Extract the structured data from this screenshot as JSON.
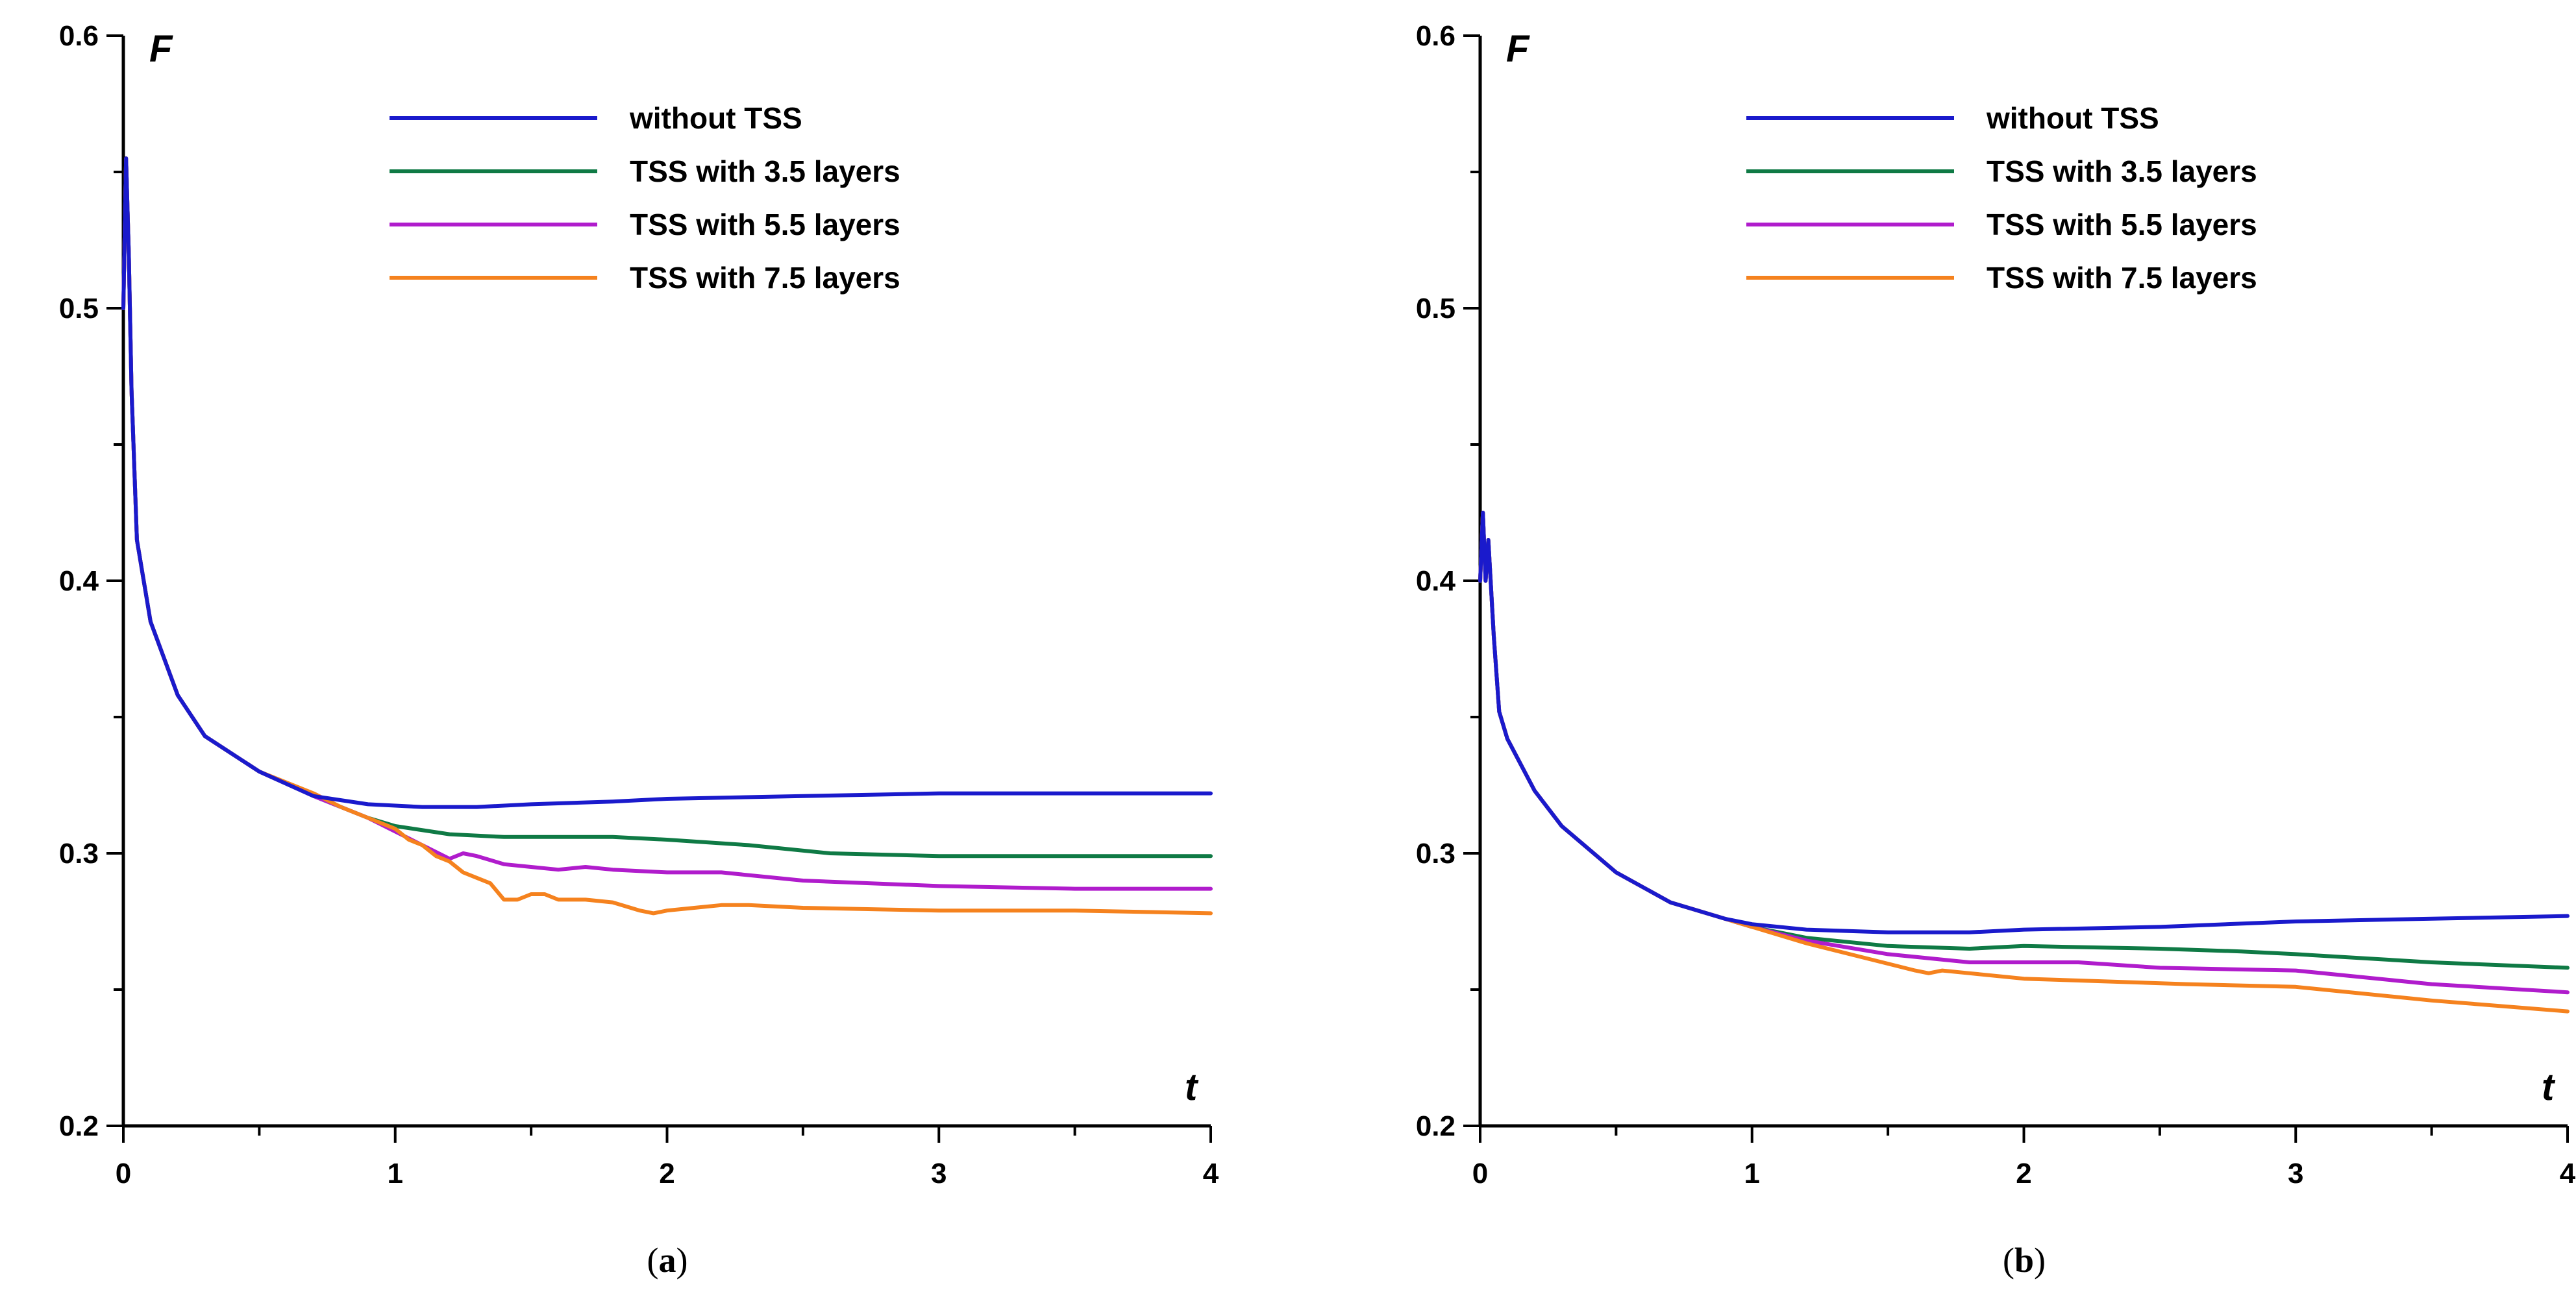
{
  "chart_data": [
    {
      "type": "line",
      "panel_label": "a",
      "xlabel": "t",
      "ylabel": "F",
      "xlim": [
        0,
        4
      ],
      "ylim": [
        0.2,
        0.6
      ],
      "x_ticks": [
        "0",
        "1",
        "2",
        "3",
        "4"
      ],
      "y_ticks": [
        "0.2",
        "0.3",
        "0.4",
        "0.5",
        "0.6"
      ],
      "x_tick_values": [
        0,
        1,
        2,
        3,
        4
      ],
      "y_tick_values": [
        0.2,
        0.3,
        0.4,
        0.5,
        0.6
      ],
      "x_minor_step": 0.5,
      "y_minor_step": 0.05,
      "legend_position": "top",
      "series": [
        {
          "name": "without TSS",
          "color": "#1a1acc",
          "x": [
            0,
            0.01,
            0.02,
            0.03,
            0.05,
            0.1,
            0.2,
            0.3,
            0.5,
            0.7,
            0.9,
            1.1,
            1.3,
            1.5,
            1.8,
            2.0,
            2.5,
            3.0,
            3.5,
            4.0
          ],
          "y": [
            0.5,
            0.555,
            0.52,
            0.47,
            0.415,
            0.385,
            0.358,
            0.343,
            0.33,
            0.321,
            0.318,
            0.317,
            0.317,
            0.318,
            0.319,
            0.32,
            0.321,
            0.322,
            0.322,
            0.322
          ]
        },
        {
          "name": "TSS with 3.5 layers",
          "color": "#0f7a45",
          "x": [
            0,
            0.01,
            0.02,
            0.03,
            0.05,
            0.1,
            0.2,
            0.3,
            0.5,
            0.7,
            0.9,
            1.0,
            1.2,
            1.4,
            1.6,
            1.8,
            2.0,
            2.3,
            2.6,
            3.0,
            3.5,
            4.0
          ],
          "y": [
            0.5,
            0.555,
            0.52,
            0.47,
            0.415,
            0.385,
            0.358,
            0.343,
            0.33,
            0.321,
            0.313,
            0.31,
            0.307,
            0.306,
            0.306,
            0.306,
            0.305,
            0.303,
            0.3,
            0.299,
            0.299,
            0.299
          ]
        },
        {
          "name": "TSS with 5.5 layers",
          "color": "#b01ccc",
          "x": [
            0,
            0.01,
            0.02,
            0.03,
            0.05,
            0.1,
            0.2,
            0.3,
            0.5,
            0.7,
            0.9,
            1.0,
            1.1,
            1.2,
            1.25,
            1.3,
            1.4,
            1.5,
            1.6,
            1.7,
            1.8,
            2.0,
            2.2,
            2.5,
            3.0,
            3.5,
            4.0
          ],
          "y": [
            0.5,
            0.555,
            0.52,
            0.47,
            0.415,
            0.385,
            0.358,
            0.343,
            0.33,
            0.321,
            0.313,
            0.308,
            0.303,
            0.298,
            0.3,
            0.299,
            0.296,
            0.295,
            0.294,
            0.295,
            0.294,
            0.293,
            0.293,
            0.29,
            0.288,
            0.287,
            0.287
          ]
        },
        {
          "name": "TSS with 7.5 layers",
          "color": "#f5821e",
          "x": [
            0,
            0.01,
            0.02,
            0.03,
            0.05,
            0.1,
            0.2,
            0.3,
            0.5,
            0.7,
            0.8,
            0.9,
            1.0,
            1.05,
            1.1,
            1.15,
            1.2,
            1.25,
            1.3,
            1.35,
            1.4,
            1.45,
            1.5,
            1.55,
            1.6,
            1.7,
            1.8,
            1.9,
            1.95,
            2.0,
            2.1,
            2.2,
            2.3,
            2.5,
            3.0,
            3.5,
            4.0
          ],
          "y": [
            0.5,
            0.555,
            0.52,
            0.47,
            0.415,
            0.385,
            0.358,
            0.343,
            0.33,
            0.322,
            0.317,
            0.313,
            0.309,
            0.305,
            0.303,
            0.299,
            0.297,
            0.293,
            0.291,
            0.289,
            0.283,
            0.283,
            0.285,
            0.285,
            0.283,
            0.283,
            0.282,
            0.279,
            0.278,
            0.279,
            0.28,
            0.281,
            0.281,
            0.28,
            0.279,
            0.279,
            0.278
          ]
        }
      ]
    },
    {
      "type": "line",
      "panel_label": "b",
      "xlabel": "t",
      "ylabel": "F",
      "xlim": [
        0,
        4
      ],
      "ylim": [
        0.2,
        0.6
      ],
      "x_ticks": [
        "0",
        "1",
        "2",
        "3",
        "4"
      ],
      "y_ticks": [
        "0.2",
        "0.3",
        "0.4",
        "0.5",
        "0.6"
      ],
      "x_tick_values": [
        0,
        1,
        2,
        3,
        4
      ],
      "y_tick_values": [
        0.2,
        0.3,
        0.4,
        0.5,
        0.6
      ],
      "x_minor_step": 0.5,
      "y_minor_step": 0.05,
      "legend_position": "top",
      "series": [
        {
          "name": "without TSS",
          "color": "#1a1acc",
          "x": [
            0,
            0.01,
            0.02,
            0.03,
            0.05,
            0.07,
            0.1,
            0.2,
            0.3,
            0.5,
            0.7,
            0.9,
            1.0,
            1.2,
            1.5,
            1.8,
            2.0,
            2.5,
            3.0,
            3.5,
            4.0
          ],
          "y": [
            0.4,
            0.425,
            0.4,
            0.415,
            0.38,
            0.352,
            0.342,
            0.323,
            0.31,
            0.293,
            0.282,
            0.276,
            0.274,
            0.272,
            0.271,
            0.271,
            0.272,
            0.273,
            0.275,
            0.276,
            0.277
          ]
        },
        {
          "name": "TSS with 3.5 layers",
          "color": "#0f7a45",
          "x": [
            0,
            0.01,
            0.02,
            0.03,
            0.05,
            0.07,
            0.1,
            0.2,
            0.3,
            0.5,
            0.7,
            0.9,
            1.0,
            1.2,
            1.5,
            1.8,
            2.0,
            2.5,
            2.8,
            3.0,
            3.5,
            4.0
          ],
          "y": [
            0.4,
            0.425,
            0.4,
            0.415,
            0.38,
            0.352,
            0.342,
            0.323,
            0.31,
            0.293,
            0.282,
            0.276,
            0.273,
            0.269,
            0.266,
            0.265,
            0.266,
            0.265,
            0.264,
            0.263,
            0.26,
            0.258
          ]
        },
        {
          "name": "TSS with 5.5 layers",
          "color": "#b01ccc",
          "x": [
            0,
            0.01,
            0.02,
            0.03,
            0.05,
            0.07,
            0.1,
            0.2,
            0.3,
            0.5,
            0.7,
            0.9,
            1.0,
            1.2,
            1.5,
            1.8,
            2.0,
            2.2,
            2.5,
            3.0,
            3.5,
            4.0
          ],
          "y": [
            0.4,
            0.425,
            0.4,
            0.415,
            0.38,
            0.352,
            0.342,
            0.323,
            0.31,
            0.293,
            0.282,
            0.276,
            0.273,
            0.268,
            0.263,
            0.26,
            0.26,
            0.26,
            0.258,
            0.257,
            0.252,
            0.249
          ]
        },
        {
          "name": "TSS with 7.5 layers",
          "color": "#f5821e",
          "x": [
            0,
            0.01,
            0.02,
            0.03,
            0.05,
            0.07,
            0.1,
            0.2,
            0.3,
            0.5,
            0.7,
            0.9,
            1.0,
            1.2,
            1.4,
            1.6,
            1.65,
            1.7,
            1.8,
            2.0,
            2.3,
            2.6,
            3.0,
            3.5,
            4.0
          ],
          "y": [
            0.4,
            0.425,
            0.4,
            0.415,
            0.38,
            0.352,
            0.342,
            0.323,
            0.31,
            0.293,
            0.282,
            0.276,
            0.273,
            0.267,
            0.262,
            0.257,
            0.256,
            0.257,
            0.256,
            0.254,
            0.253,
            0.252,
            0.251,
            0.246,
            0.242
          ]
        }
      ]
    }
  ]
}
